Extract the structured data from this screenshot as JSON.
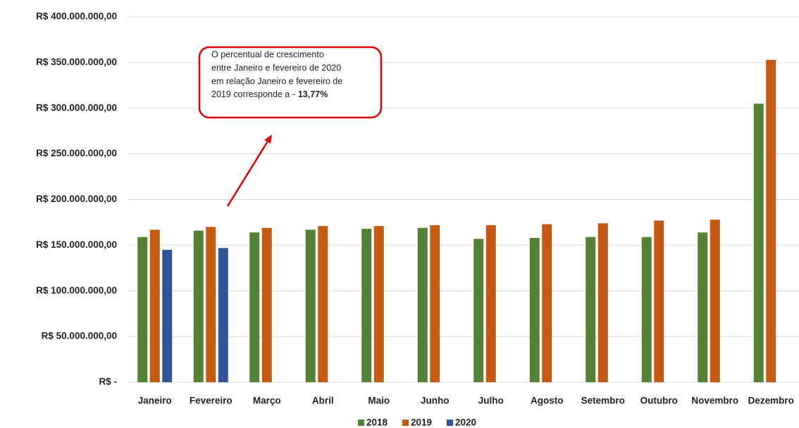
{
  "chart_data": {
    "type": "bar",
    "categories": [
      "Janeiro",
      "Fevereiro",
      "Março",
      "Abril",
      "Maio",
      "Junho",
      "Julho",
      "Agosto",
      "Setembro",
      "Outubro",
      "Novembro",
      "Dezembro"
    ],
    "series": [
      {
        "name": "2018",
        "color": "#548235",
        "values": [
          159000000,
          166000000,
          164000000,
          167000000,
          168000000,
          169000000,
          157000000,
          158000000,
          159000000,
          159000000,
          164000000,
          305000000
        ]
      },
      {
        "name": "2019",
        "color": "#c55a11",
        "values": [
          167000000,
          170000000,
          169000000,
          171000000,
          171000000,
          172000000,
          172000000,
          173000000,
          174000000,
          177000000,
          178000000,
          353000000
        ]
      },
      {
        "name": "2020",
        "color": "#2f5597",
        "values": [
          145000000,
          147000000,
          null,
          null,
          null,
          null,
          null,
          null,
          null,
          null,
          null,
          null
        ]
      }
    ],
    "ylim": [
      0,
      400000000
    ],
    "yticks": [
      {
        "value": 0,
        "label": "R$ -"
      },
      {
        "value": 50000000,
        "label": "R$ 50.000.000,00"
      },
      {
        "value": 100000000,
        "label": "R$ 100.000.000,00"
      },
      {
        "value": 150000000,
        "label": "R$ 150.000.000,00"
      },
      {
        "value": 200000000,
        "label": "R$ 200.000.000,00"
      },
      {
        "value": 250000000,
        "label": "R$ 250.000.000,00"
      },
      {
        "value": 300000000,
        "label": "R$ 300.000.000,00"
      },
      {
        "value": 350000000,
        "label": "R$ 350.000.000,00"
      },
      {
        "value": 400000000,
        "label": "R$ 400.000.000,00"
      }
    ],
    "grid": true,
    "legend": "bottom",
    "annotation": {
      "lines": [
        "O percentual de crescimento",
        "entre Janeiro e fevereiro de 2020",
        "em relação Janeiro e fevereiro de",
        "2019 corresponde a -"
      ],
      "bold": "13,77%"
    }
  }
}
